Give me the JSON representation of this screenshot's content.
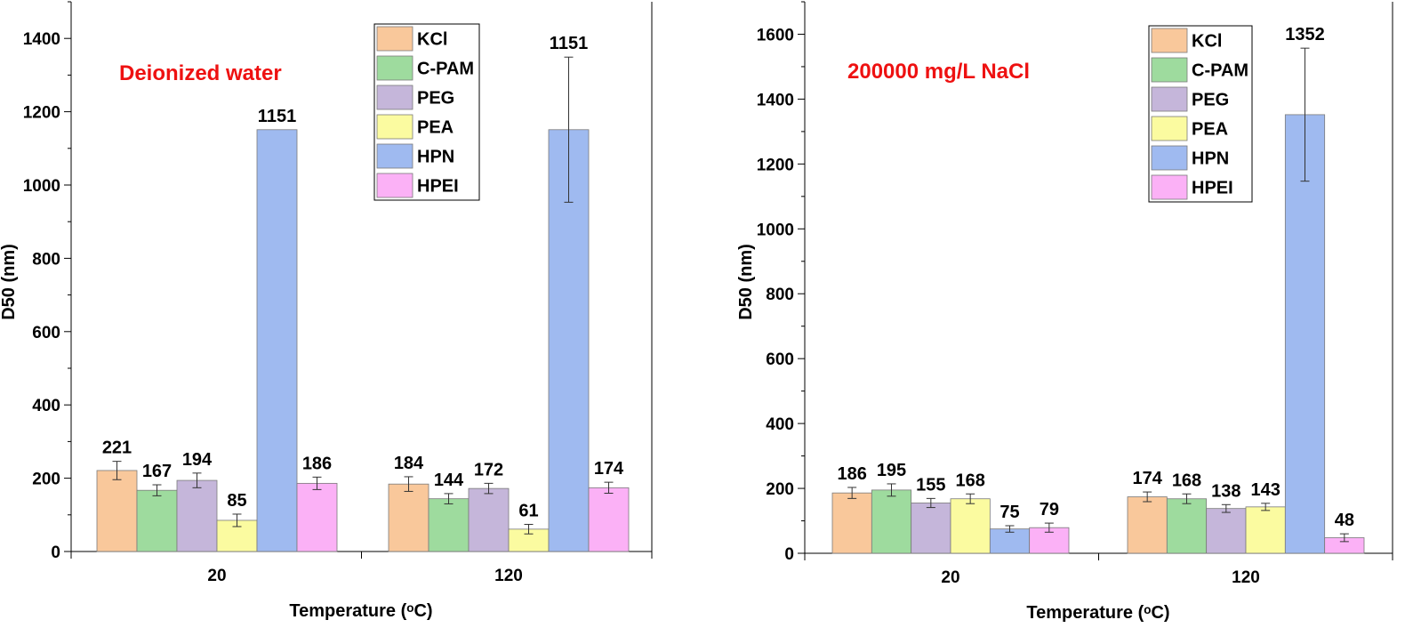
{
  "series_colors": [
    "#F9C89B",
    "#9EDB9E",
    "#C5B6DA",
    "#FBFBA0",
    "#9FBAF0",
    "#FBB1F6"
  ],
  "title_color": "#EE1111",
  "chart_data": [
    {
      "type": "bar",
      "title": "Deionized water",
      "xlabel": "Temperature (ᵒC)",
      "ylabel": "D50 (nm)",
      "ylim": [
        0,
        1500
      ],
      "yticks": [
        0,
        200,
        400,
        600,
        800,
        1000,
        1200,
        1400
      ],
      "categories": [
        "20",
        "120"
      ],
      "legend": "top-right",
      "series": [
        {
          "name": "KCl",
          "values": [
            221,
            184
          ],
          "errors": [
            25,
            20
          ]
        },
        {
          "name": "C-PAM",
          "values": [
            167,
            144
          ],
          "errors": [
            15,
            14
          ]
        },
        {
          "name": "PEG",
          "values": [
            194,
            172
          ],
          "errors": [
            20,
            14
          ]
        },
        {
          "name": "PEA",
          "values": [
            85,
            61
          ],
          "errors": [
            17,
            13
          ]
        },
        {
          "name": "HPN",
          "values": [
            1151,
            1151
          ],
          "errors": [
            0,
            198
          ]
        },
        {
          "name": "HPEI",
          "values": [
            186,
            174
          ],
          "errors": [
            17,
            15
          ]
        }
      ]
    },
    {
      "type": "bar",
      "title": "200000 mg/L NaCl",
      "xlabel": "Temperature (ᵒC)",
      "ylabel": "D50 (nm)",
      "ylim": [
        0,
        1700
      ],
      "yticks": [
        0,
        200,
        400,
        600,
        800,
        1000,
        1200,
        1400,
        1600
      ],
      "categories": [
        "20",
        "120"
      ],
      "legend": "top-right",
      "series": [
        {
          "name": "KCl",
          "values": [
            186,
            174
          ],
          "errors": [
            17,
            15
          ]
        },
        {
          "name": "C-PAM",
          "values": [
            195,
            168
          ],
          "errors": [
            19,
            15
          ]
        },
        {
          "name": "PEG",
          "values": [
            155,
            138
          ],
          "errors": [
            14,
            12
          ]
        },
        {
          "name": "PEA",
          "values": [
            168,
            143
          ],
          "errors": [
            15,
            11
          ]
        },
        {
          "name": "HPN",
          "values": [
            75,
            1352
          ],
          "errors": [
            10,
            205
          ]
        },
        {
          "name": "HPEI",
          "values": [
            79,
            48
          ],
          "errors": [
            14,
            12
          ]
        }
      ]
    }
  ]
}
